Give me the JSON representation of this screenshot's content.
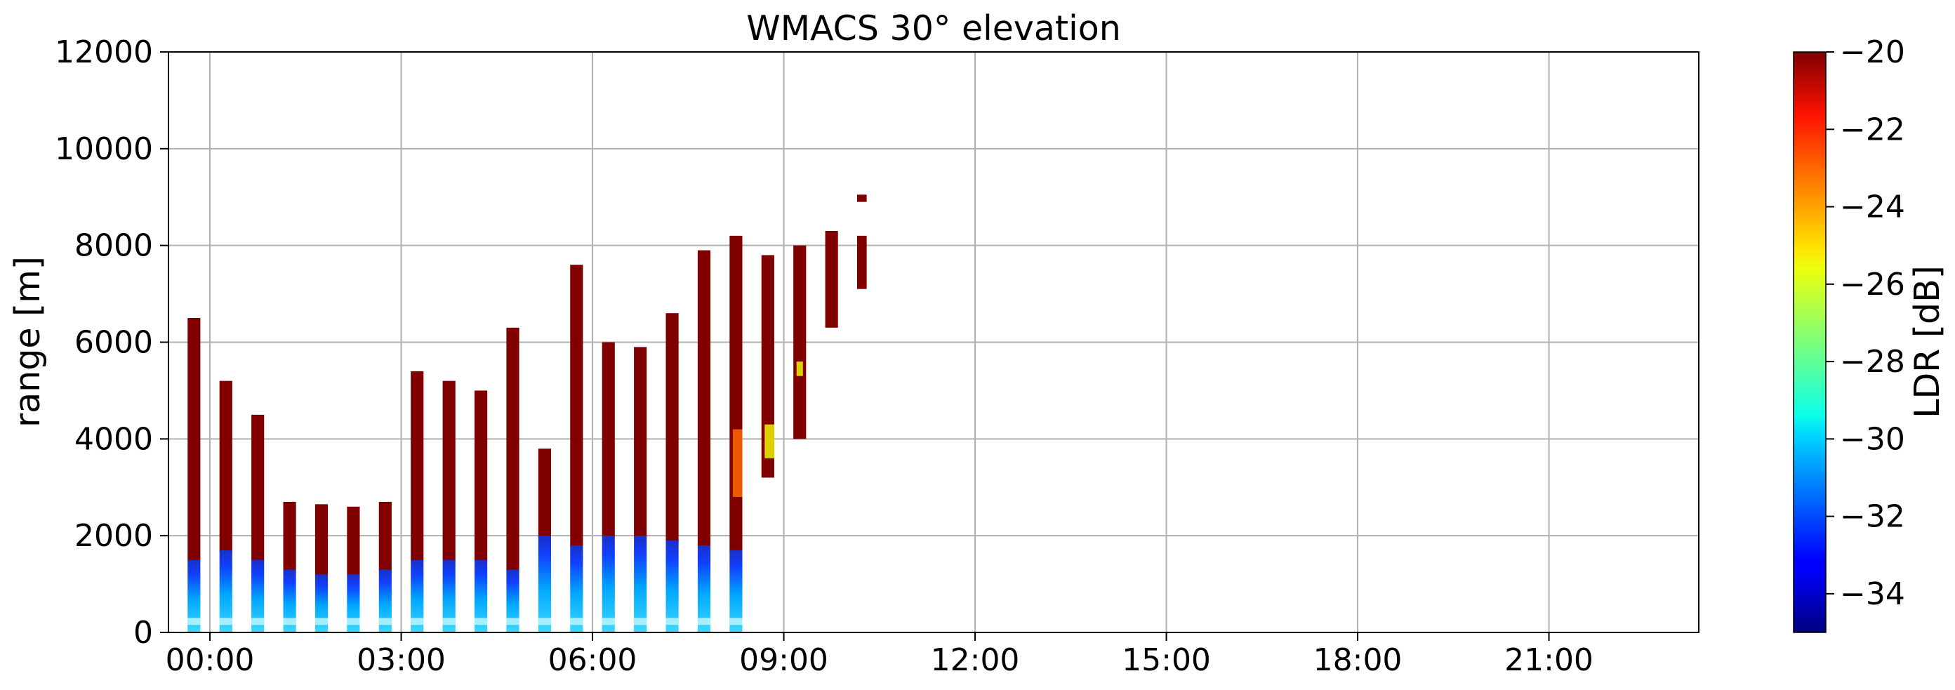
{
  "chart_data": {
    "type": "heatmap",
    "title": "WMACS 30° elevation",
    "xlabel": "",
    "ylabel": "range [m]",
    "colorbar_label": "LDR [dB]",
    "xlim_hours": [
      -0.65,
      23.35
    ],
    "ylim": [
      0,
      12000
    ],
    "x_ticks": [
      {
        "hour": 0,
        "label": "00:00"
      },
      {
        "hour": 3,
        "label": "03:00"
      },
      {
        "hour": 6,
        "label": "06:00"
      },
      {
        "hour": 9,
        "label": "09:00"
      },
      {
        "hour": 12,
        "label": "12:00"
      },
      {
        "hour": 15,
        "label": "15:00"
      },
      {
        "hour": 18,
        "label": "18:00"
      },
      {
        "hour": 21,
        "label": "21:00"
      }
    ],
    "y_ticks": [
      {
        "value": 0,
        "label": "0"
      },
      {
        "value": 2000,
        "label": "2000"
      },
      {
        "value": 4000,
        "label": "4000"
      },
      {
        "value": 6000,
        "label": "6000"
      },
      {
        "value": 8000,
        "label": "8000"
      },
      {
        "value": 10000,
        "label": "10000"
      },
      {
        "value": 12000,
        "label": "12000"
      }
    ],
    "colorbar": {
      "vmin": -35,
      "vmax": -20,
      "colormap": "jet",
      "ticks": [
        {
          "value": -20,
          "label": "−20"
        },
        {
          "value": -22,
          "label": "−22"
        },
        {
          "value": -24,
          "label": "−24"
        },
        {
          "value": -26,
          "label": "−26"
        },
        {
          "value": -28,
          "label": "−28"
        },
        {
          "value": -30,
          "label": "−30"
        },
        {
          "value": -32,
          "label": "−32"
        },
        {
          "value": -34,
          "label": "−34"
        }
      ]
    },
    "grid": true,
    "columns": [
      {
        "start_hour": -0.35,
        "end_hour": -0.15,
        "top_range": 6500,
        "low_ldr_top": 1500
      },
      {
        "start_hour": 0.15,
        "end_hour": 0.35,
        "top_range": 5200,
        "low_ldr_top": 1700
      },
      {
        "start_hour": 0.65,
        "end_hour": 0.85,
        "top_range": 4500,
        "low_ldr_top": 1500
      },
      {
        "start_hour": 1.15,
        "end_hour": 1.35,
        "top_range": 2700,
        "low_ldr_top": 1300
      },
      {
        "start_hour": 1.65,
        "end_hour": 1.85,
        "top_range": 2650,
        "low_ldr_top": 1200
      },
      {
        "start_hour": 2.15,
        "end_hour": 2.35,
        "top_range": 2600,
        "low_ldr_top": 1200
      },
      {
        "start_hour": 2.65,
        "end_hour": 2.85,
        "top_range": 2700,
        "low_ldr_top": 1300
      },
      {
        "start_hour": 3.15,
        "end_hour": 3.35,
        "top_range": 5400,
        "low_ldr_top": 1500
      },
      {
        "start_hour": 3.65,
        "end_hour": 3.85,
        "top_range": 5200,
        "low_ldr_top": 1500
      },
      {
        "start_hour": 4.15,
        "end_hour": 4.35,
        "top_range": 5000,
        "low_ldr_top": 1500
      },
      {
        "start_hour": 4.65,
        "end_hour": 4.85,
        "top_range": 6300,
        "low_ldr_top": 1300
      },
      {
        "start_hour": 5.15,
        "end_hour": 5.35,
        "top_range": 3800,
        "low_ldr_top": 2000
      },
      {
        "start_hour": 5.65,
        "end_hour": 5.85,
        "top_range": 7600,
        "low_ldr_top": 1800
      },
      {
        "start_hour": 6.15,
        "end_hour": 6.35,
        "top_range": 6000,
        "low_ldr_top": 2000
      },
      {
        "start_hour": 6.65,
        "end_hour": 6.85,
        "top_range": 5900,
        "low_ldr_top": 2000
      },
      {
        "start_hour": 7.15,
        "end_hour": 7.35,
        "top_range": 6600,
        "low_ldr_top": 1900
      },
      {
        "start_hour": 7.65,
        "end_hour": 7.85,
        "top_range": 7900,
        "low_ldr_top": 1800
      },
      {
        "start_hour": 8.15,
        "end_hour": 8.35,
        "top_range": 8200,
        "low_ldr_top": 1700
      }
    ],
    "patches": [
      {
        "start_hour": 8.65,
        "end_hour": 8.85,
        "bottom_range": 3200,
        "top_range": 7800
      },
      {
        "start_hour": 9.15,
        "end_hour": 9.35,
        "bottom_range": 4000,
        "top_range": 8000
      },
      {
        "start_hour": 9.65,
        "end_hour": 9.85,
        "bottom_range": 6300,
        "top_range": 8300
      },
      {
        "start_hour": 10.15,
        "end_hour": 10.3,
        "bottom_range": 7100,
        "top_range": 8200
      },
      {
        "start_hour": 10.15,
        "end_hour": 10.3,
        "bottom_range": 8900,
        "top_range": 9050
      }
    ]
  }
}
